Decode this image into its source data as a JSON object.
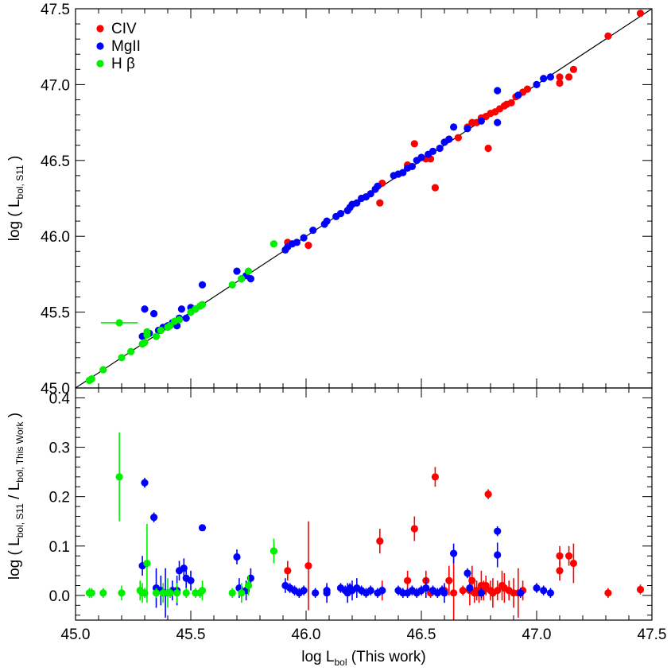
{
  "chart_data": [
    {
      "type": "scatter",
      "panel": "top",
      "ylabel_parts": [
        "log ( L",
        "bol, S11",
        " )"
      ],
      "xlim": [
        45.0,
        47.5
      ],
      "ylim": [
        45.0,
        47.5
      ],
      "yticks": [
        "45.0",
        "45.5",
        "46.0",
        "46.5",
        "47.0",
        "47.5"
      ],
      "one_to_one_line": true,
      "legend_position": "top-left",
      "series": [
        {
          "name": "CIV",
          "color": "#ff0000",
          "points": [
            [
              45.92,
              45.96
            ],
            [
              46.01,
              45.94
            ],
            [
              46.32,
              46.22
            ],
            [
              46.33,
              46.35
            ],
            [
              46.44,
              46.47
            ],
            [
              46.47,
              46.61
            ],
            [
              46.52,
              46.51
            ],
            [
              46.54,
              46.51
            ],
            [
              46.56,
              46.32
            ],
            [
              46.62,
              46.64
            ],
            [
              46.66,
              46.65
            ],
            [
              46.7,
              46.72
            ],
            [
              46.72,
              46.75
            ],
            [
              46.74,
              46.75
            ],
            [
              46.76,
              46.78
            ],
            [
              46.78,
              46.79
            ],
            [
              46.8,
              46.81
            ],
            [
              46.79,
              46.58
            ],
            [
              46.82,
              46.82
            ],
            [
              46.84,
              46.84
            ],
            [
              46.86,
              46.86
            ],
            [
              46.87,
              46.87
            ],
            [
              46.89,
              46.88
            ],
            [
              46.91,
              46.92
            ],
            [
              46.94,
              46.95
            ],
            [
              46.96,
              46.97
            ],
            [
              47.1,
              47.01
            ],
            [
              47.1,
              47.05
            ],
            [
              47.14,
              47.05
            ],
            [
              47.16,
              47.1
            ],
            [
              47.31,
              47.32
            ],
            [
              47.45,
              47.47
            ]
          ],
          "residuals": [
            [
              45.92,
              0.05,
              0.02
            ],
            [
              46.01,
              0.06,
              0.09
            ],
            [
              46.32,
              0.11,
              0.025
            ],
            [
              46.33,
              0.01,
              0.02
            ],
            [
              46.44,
              0.03,
              0.02
            ],
            [
              46.47,
              0.135,
              0.025
            ],
            [
              46.52,
              0.03,
              0.02
            ],
            [
              46.54,
              0.005,
              0.01
            ],
            [
              46.56,
              0.24,
              0.02
            ],
            [
              46.6,
              0.01,
              0.01
            ],
            [
              46.62,
              0.03,
              0.03
            ],
            [
              46.64,
              0.005,
              0.07
            ],
            [
              46.68,
              0.01,
              0.01
            ],
            [
              46.71,
              0.01,
              0.03
            ],
            [
              46.72,
              0.03,
              0.03
            ],
            [
              46.73,
              0.005,
              0.02
            ],
            [
              46.74,
              0.01,
              0.02
            ],
            [
              46.75,
              0.005,
              0.02
            ],
            [
              46.76,
              0.02,
              0.03
            ],
            [
              46.77,
              0.01,
              0.02
            ],
            [
              46.78,
              0.02,
              0.02
            ],
            [
              46.79,
              0.205,
              0.01
            ],
            [
              46.8,
              0.01,
              0.02
            ],
            [
              46.81,
              0.005,
              0.03
            ],
            [
              46.83,
              0.01,
              0.02
            ],
            [
              46.85,
              0.02,
              0.03
            ],
            [
              46.86,
              0.015,
              0.03
            ],
            [
              46.88,
              0.01,
              0.02
            ],
            [
              46.9,
              0.005,
              0.03
            ],
            [
              46.92,
              0.005,
              0.05
            ],
            [
              46.94,
              0.01,
              0.02
            ],
            [
              47.1,
              0.08,
              0.02
            ],
            [
              47.1,
              0.05,
              0.02
            ],
            [
              47.14,
              0.08,
              0.02
            ],
            [
              47.16,
              0.065,
              0.04
            ],
            [
              47.31,
              0.005,
              0.01
            ],
            [
              47.45,
              0.012,
              0.01
            ]
          ]
        },
        {
          "name": "MgII",
          "color": "#0000ff",
          "points": [
            [
              45.29,
              45.34
            ],
            [
              45.3,
              45.52
            ],
            [
              45.32,
              45.36
            ],
            [
              45.34,
              45.49
            ],
            [
              45.36,
              45.38
            ],
            [
              45.38,
              45.4
            ],
            [
              45.4,
              45.41
            ],
            [
              45.42,
              45.43
            ],
            [
              45.44,
              45.41
            ],
            [
              45.45,
              45.46
            ],
            [
              45.46,
              45.52
            ],
            [
              45.48,
              45.46
            ],
            [
              45.5,
              45.53
            ],
            [
              45.52,
              45.52
            ],
            [
              45.55,
              45.68
            ],
            [
              45.7,
              45.77
            ],
            [
              45.72,
              45.72
            ],
            [
              45.74,
              45.74
            ],
            [
              45.76,
              45.72
            ],
            [
              45.91,
              45.91
            ],
            [
              45.92,
              45.93
            ],
            [
              45.94,
              45.95
            ],
            [
              45.96,
              45.96
            ],
            [
              45.99,
              45.99
            ],
            [
              46.03,
              46.04
            ],
            [
              46.08,
              46.08
            ],
            [
              46.09,
              46.1
            ],
            [
              46.13,
              46.13
            ],
            [
              46.15,
              46.15
            ],
            [
              46.18,
              46.17
            ],
            [
              46.19,
              46.19
            ],
            [
              46.2,
              46.21
            ],
            [
              46.22,
              46.22
            ],
            [
              46.24,
              46.25
            ],
            [
              46.26,
              46.26
            ],
            [
              46.28,
              46.28
            ],
            [
              46.3,
              46.31
            ],
            [
              46.31,
              46.33
            ],
            [
              46.38,
              46.4
            ],
            [
              46.4,
              46.41
            ],
            [
              46.42,
              46.42
            ],
            [
              46.44,
              46.45
            ],
            [
              46.46,
              46.46
            ],
            [
              46.48,
              46.5
            ],
            [
              46.5,
              46.52
            ],
            [
              46.53,
              46.54
            ],
            [
              46.55,
              46.56
            ],
            [
              46.58,
              46.58
            ],
            [
              46.6,
              46.62
            ],
            [
              46.62,
              46.64
            ],
            [
              46.64,
              46.72
            ],
            [
              46.7,
              46.71
            ],
            [
              46.76,
              46.76
            ],
            [
              46.83,
              46.96
            ],
            [
              46.83,
              46.75
            ],
            [
              46.92,
              46.93
            ],
            [
              47.0,
              47.0
            ],
            [
              47.03,
              47.04
            ],
            [
              47.06,
              47.05
            ]
          ],
          "residuals": [
            [
              45.29,
              0.06,
              0.02
            ],
            [
              45.3,
              0.228,
              0.01
            ],
            [
              45.34,
              0.158,
              0.01
            ],
            [
              45.35,
              0.015,
              0.04
            ],
            [
              45.37,
              0.01,
              0.03
            ],
            [
              45.39,
              0.005,
              0.05
            ],
            [
              45.42,
              0.01,
              0.02
            ],
            [
              45.44,
              0.01,
              0.03
            ],
            [
              45.45,
              0.05,
              0.02
            ],
            [
              45.47,
              0.055,
              0.02
            ],
            [
              45.48,
              0.035,
              0.02
            ],
            [
              45.5,
              0.03,
              0.02
            ],
            [
              45.55,
              0.137,
              0.005
            ],
            [
              45.7,
              0.078,
              0.015
            ],
            [
              45.71,
              0.015,
              0.02
            ],
            [
              45.74,
              0.01,
              0.02
            ],
            [
              45.76,
              0.035,
              0.02
            ],
            [
              45.91,
              0.02,
              0.015
            ],
            [
              45.93,
              0.015,
              0.01
            ],
            [
              45.95,
              0.01,
              0.01
            ],
            [
              45.97,
              0.005,
              0.01
            ],
            [
              45.99,
              0.01,
              0.01
            ],
            [
              46.04,
              0.005,
              0.01
            ],
            [
              46.09,
              0.01,
              0.01
            ],
            [
              46.09,
              0.005,
              0.02
            ],
            [
              46.15,
              0.015,
              0.01
            ],
            [
              46.17,
              0.01,
              0.01
            ],
            [
              46.18,
              0.005,
              0.02
            ],
            [
              46.19,
              0.015,
              0.01
            ],
            [
              46.2,
              0.01,
              0.02
            ],
            [
              46.22,
              0.015,
              0.02
            ],
            [
              46.24,
              0.01,
              0.01
            ],
            [
              46.26,
              0.005,
              0.01
            ],
            [
              46.28,
              0.01,
              0.01
            ],
            [
              46.31,
              0.005,
              0.01
            ],
            [
              46.33,
              0.01,
              0.01
            ],
            [
              46.4,
              0.01,
              0.01
            ],
            [
              46.42,
              0.005,
              0.01
            ],
            [
              46.44,
              0.005,
              0.01
            ],
            [
              46.46,
              0.01,
              0.01
            ],
            [
              46.48,
              0.005,
              0.01
            ],
            [
              46.5,
              0.01,
              0.01
            ],
            [
              46.52,
              0.015,
              0.02
            ],
            [
              46.55,
              0.01,
              0.01
            ],
            [
              46.57,
              0.005,
              0.01
            ],
            [
              46.59,
              0.01,
              0.01
            ],
            [
              46.6,
              0.005,
              0.02
            ],
            [
              46.64,
              0.085,
              0.02
            ],
            [
              46.7,
              0.045,
              0.01
            ],
            [
              46.71,
              0.015,
              0.01
            ],
            [
              46.76,
              0.005,
              0.01
            ],
            [
              46.83,
              0.13,
              0.01
            ],
            [
              46.83,
              0.082,
              0.025
            ],
            [
              46.93,
              0.005,
              0.01
            ],
            [
              47.0,
              0.015,
              0.01
            ],
            [
              47.03,
              0.01,
              0.01
            ],
            [
              47.06,
              0.005,
              0.01
            ]
          ]
        },
        {
          "name": "H β",
          "color": "#00ee00",
          "points": [
            [
              45.06,
              45.05
            ],
            [
              45.07,
              45.06
            ],
            [
              45.12,
              45.12
            ],
            [
              45.2,
              45.2
            ],
            [
              45.24,
              45.24
            ],
            [
              45.19,
              45.43
            ],
            [
              45.29,
              45.29
            ],
            [
              45.3,
              45.3
            ],
            [
              45.31,
              45.35
            ],
            [
              45.31,
              45.37
            ],
            [
              45.35,
              45.34
            ],
            [
              45.37,
              45.38
            ],
            [
              45.4,
              45.4
            ],
            [
              45.41,
              45.41
            ],
            [
              45.43,
              45.44
            ],
            [
              45.45,
              45.45
            ],
            [
              45.5,
              45.5
            ],
            [
              45.52,
              45.52
            ],
            [
              45.54,
              45.54
            ],
            [
              45.55,
              45.55
            ],
            [
              45.68,
              45.68
            ],
            [
              45.72,
              45.72
            ],
            [
              45.75,
              45.77
            ],
            [
              45.86,
              45.95
            ]
          ],
          "residuals": [
            [
              45.06,
              0.005,
              0.01
            ],
            [
              45.07,
              0.005,
              0.01
            ],
            [
              45.12,
              0.005,
              0.01
            ],
            [
              45.19,
              0.24,
              0.09
            ],
            [
              45.2,
              0.005,
              0.015
            ],
            [
              45.28,
              0.01,
              0.02
            ],
            [
              45.29,
              0.005,
              0.02
            ],
            [
              45.3,
              0.005,
              0.01
            ],
            [
              45.31,
              0.065,
              0.08
            ],
            [
              45.35,
              0.005,
              0.01
            ],
            [
              45.38,
              0.005,
              0.02
            ],
            [
              45.4,
              0.005,
              0.03
            ],
            [
              45.41,
              0.005,
              0.01
            ],
            [
              45.44,
              0.005,
              0.02
            ],
            [
              45.48,
              0.005,
              0.01
            ],
            [
              45.52,
              0.005,
              0.01
            ],
            [
              45.54,
              0.005,
              0.01
            ],
            [
              45.55,
              0.01,
              0.02
            ],
            [
              45.68,
              0.005,
              0.01
            ],
            [
              45.72,
              0.005,
              0.02
            ],
            [
              45.75,
              0.02,
              0.02
            ],
            [
              45.86,
              0.09,
              0.025
            ]
          ]
        }
      ]
    },
    {
      "type": "scatter",
      "panel": "bottom",
      "ylabel_parts": [
        "log ( L",
        "bol, S11",
        " / L",
        "bol, This Work",
        " )"
      ],
      "xlabel_parts": [
        "log L",
        "bol",
        " (This work)"
      ],
      "xlim": [
        45.0,
        47.5
      ],
      "ylim": [
        -0.05,
        0.42
      ],
      "xticks": [
        "45.0",
        "45.5",
        "46.0",
        "46.5",
        "47.0",
        "47.5"
      ],
      "yticks": [
        "0.0",
        "0.1",
        "0.2",
        "0.3",
        "0.4"
      ]
    }
  ]
}
